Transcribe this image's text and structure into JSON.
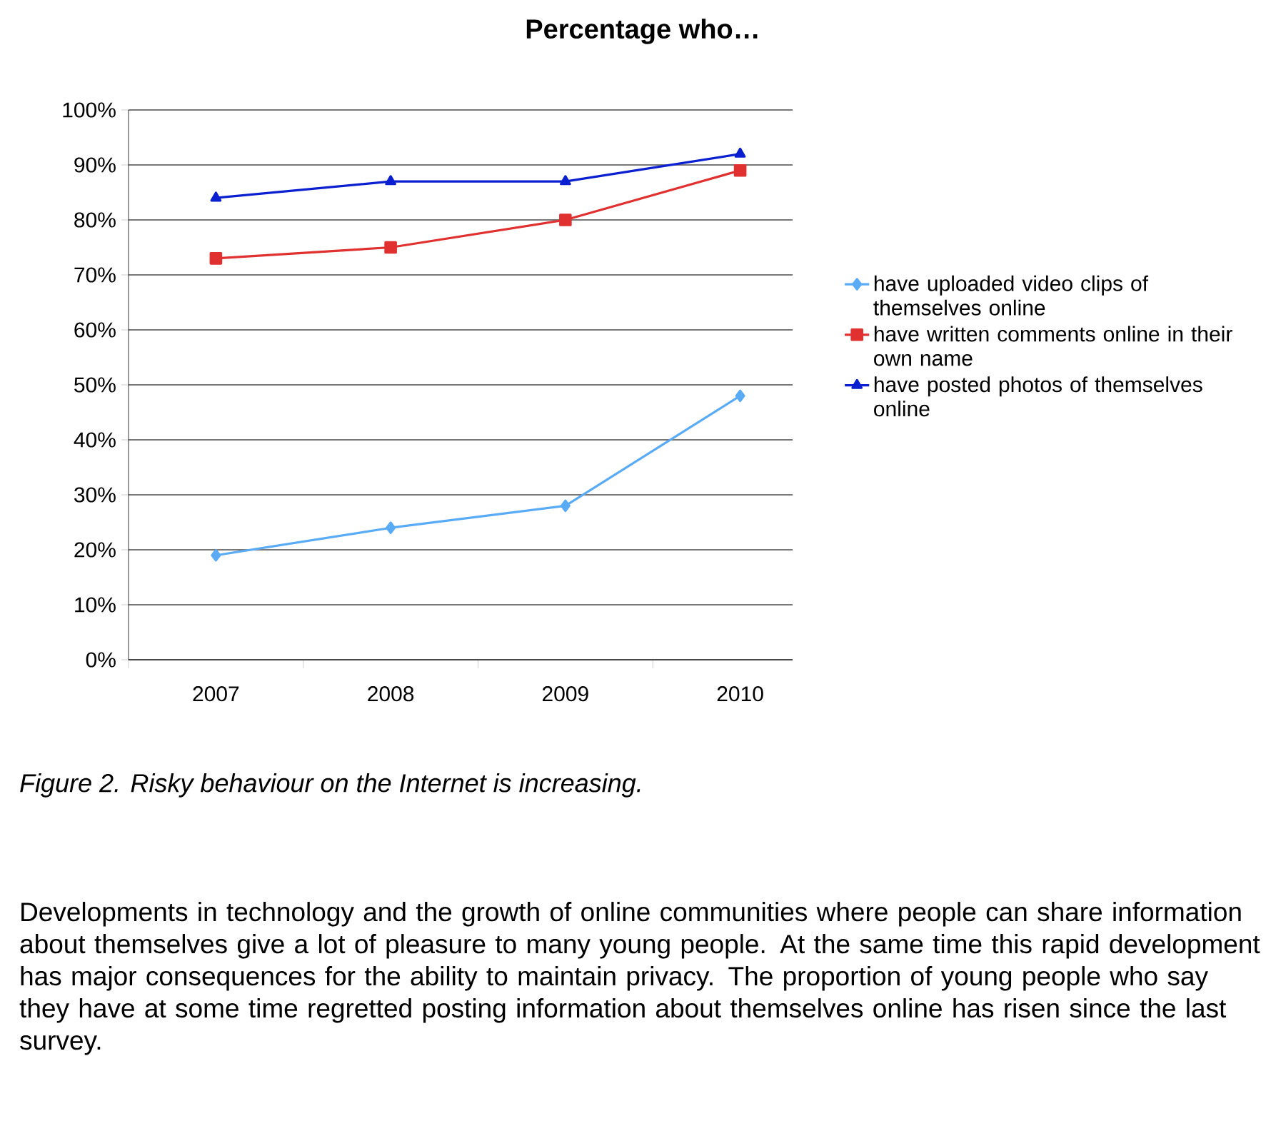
{
  "chart_data": {
    "type": "line",
    "title": "Percentage who…",
    "categories": [
      "2007",
      "2008",
      "2009",
      "2010"
    ],
    "series": [
      {
        "name": "have uploaded video clips of themselves online",
        "color": "#5aabf5",
        "marker": "diamond",
        "values": [
          19,
          24,
          28,
          48
        ]
      },
      {
        "name": "have written comments online in their own name",
        "color": "#e0302f",
        "marker": "square",
        "values": [
          73,
          75,
          80,
          89
        ]
      },
      {
        "name": "have posted photos of themselves online",
        "color": "#0a1fd0",
        "marker": "triangle",
        "values": [
          84,
          87,
          87,
          92
        ]
      }
    ],
    "ylim": [
      0,
      100
    ],
    "yticks": [
      {
        "value": 0,
        "label": "0%"
      },
      {
        "value": 10,
        "label": "10%"
      },
      {
        "value": 20,
        "label": "20%"
      },
      {
        "value": 30,
        "label": "30%"
      },
      {
        "value": 40,
        "label": "40%"
      },
      {
        "value": 50,
        "label": "50%"
      },
      {
        "value": 60,
        "label": "60%"
      },
      {
        "value": 70,
        "label": "70%"
      },
      {
        "value": 80,
        "label": "80%"
      },
      {
        "value": 90,
        "label": "90%"
      },
      {
        "value": 100,
        "label": "100%"
      }
    ],
    "grid": "y",
    "legend": "right",
    "line_style": "solid",
    "annotations": [
      "Figure 2. Risky behaviour on the Internet is increasing.",
      "Developments in technology and the growth of online communities where people can share information about themselves give a lot of pleasure to many young people. At the same time this rapid development has major consequences for the ability to maintain privacy. The proportion of young people who say they have at some time regretted posting information about themselves online has risen since the last survey."
    ]
  }
}
